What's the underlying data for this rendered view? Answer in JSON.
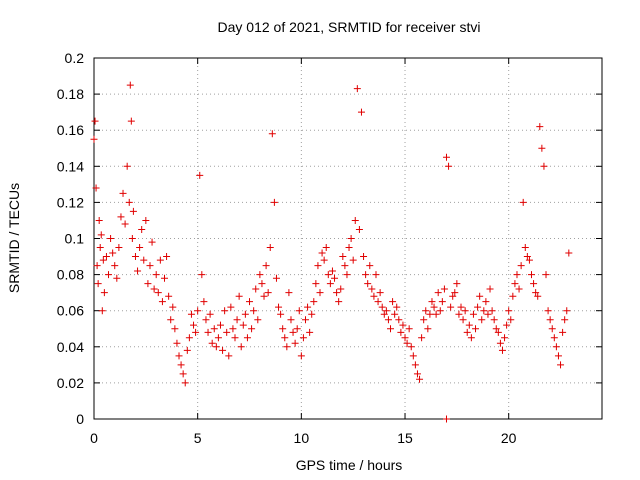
{
  "chart_data": {
    "type": "scatter",
    "title": "Day 012 of 2021, SRMTID for receiver stvi",
    "xlabel": "GPS time / hours",
    "ylabel": "SRMTID / TECUs",
    "xlim": [
      0,
      24.5
    ],
    "ylim": [
      0,
      0.2
    ],
    "x_ticks": [
      0,
      5,
      10,
      15,
      20
    ],
    "x_tick_labels": [
      "0",
      "5",
      "10",
      "15",
      "20"
    ],
    "y_ticks": [
      0,
      0.02,
      0.04,
      0.06,
      0.08,
      0.1,
      0.12,
      0.14,
      0.16,
      0.18,
      0.2
    ],
    "y_tick_labels": [
      "0",
      "0.02",
      "0.04",
      "0.06",
      "0.08",
      "0.1",
      "0.12",
      "0.14",
      "0.16",
      "0.18",
      "0.2"
    ],
    "grid": true,
    "legend": "none",
    "marker": "plus",
    "series_color": "#e00000",
    "series": [
      {
        "x": [
          0.0,
          0.05,
          0.1,
          0.15,
          0.2,
          0.25,
          0.3,
          0.35,
          0.4,
          0.45,
          0.5,
          0.6,
          0.7,
          0.8,
          0.9,
          1.0,
          1.1,
          1.2,
          1.3,
          1.4,
          1.5,
          1.6,
          1.7,
          1.75,
          1.8,
          1.85,
          1.9,
          2.0,
          2.1,
          2.2,
          2.3,
          2.4,
          2.5,
          2.6,
          2.7,
          2.8,
          2.9,
          3.0,
          3.1,
          3.2,
          3.3,
          3.4,
          3.5,
          3.6,
          3.7,
          3.8,
          3.9,
          4.0,
          4.1,
          4.2,
          4.3,
          4.4,
          4.5,
          4.6,
          4.7,
          4.8,
          4.9,
          5.0,
          5.1,
          5.2,
          5.3,
          5.4,
          5.5,
          5.6,
          5.7,
          5.8,
          5.9,
          6.0,
          6.1,
          6.2,
          6.3,
          6.4,
          6.5,
          6.6,
          6.7,
          6.8,
          6.9,
          7.0,
          7.1,
          7.2,
          7.3,
          7.4,
          7.5,
          7.6,
          7.7,
          7.8,
          7.9,
          8.0,
          8.1,
          8.2,
          8.3,
          8.4,
          8.5,
          8.6,
          8.7,
          8.8,
          8.9,
          9.0,
          9.1,
          9.2,
          9.3,
          9.4,
          9.5,
          9.6,
          9.7,
          9.8,
          9.9,
          10.0,
          10.1,
          10.2,
          10.3,
          10.4,
          10.5,
          10.6,
          10.7,
          10.8,
          10.9,
          11.0,
          11.1,
          11.2,
          11.3,
          11.4,
          11.5,
          11.6,
          11.7,
          11.8,
          11.9,
          12.0,
          12.1,
          12.2,
          12.3,
          12.4,
          12.5,
          12.6,
          12.7,
          12.8,
          12.9,
          13.0,
          13.1,
          13.2,
          13.3,
          13.4,
          13.5,
          13.6,
          13.7,
          13.8,
          13.9,
          14.0,
          14.1,
          14.2,
          14.3,
          14.4,
          14.5,
          14.6,
          14.7,
          14.8,
          14.9,
          15.0,
          15.1,
          15.2,
          15.3,
          15.4,
          15.5,
          15.6,
          15.7,
          15.8,
          15.9,
          16.0,
          16.1,
          16.2,
          16.3,
          16.4,
          16.5,
          16.6,
          16.7,
          16.8,
          16.9,
          17.0,
          17.1,
          17.2,
          17.3,
          17.4,
          17.5,
          17.6,
          17.7,
          17.8,
          17.9,
          18.0,
          18.1,
          18.2,
          18.3,
          18.4,
          18.5,
          18.6,
          18.7,
          18.8,
          18.9,
          19.0,
          19.1,
          19.2,
          19.3,
          19.4,
          19.5,
          19.6,
          19.7,
          19.8,
          19.9,
          20.0,
          20.1,
          20.2,
          20.3,
          20.4,
          20.5,
          20.6,
          20.7,
          20.8,
          20.9,
          21.0,
          21.1,
          21.2,
          21.3,
          21.4,
          21.5,
          21.6,
          21.7,
          21.8,
          21.9,
          22.0,
          22.1,
          22.2,
          22.3,
          22.4,
          22.5,
          22.6,
          22.7,
          22.8,
          22.9,
          17.0
        ],
        "y": [
          0.155,
          0.165,
          0.128,
          0.085,
          0.075,
          0.11,
          0.095,
          0.102,
          0.06,
          0.088,
          0.07,
          0.09,
          0.08,
          0.1,
          0.092,
          0.085,
          0.078,
          0.095,
          0.112,
          0.125,
          0.108,
          0.14,
          0.12,
          0.185,
          0.165,
          0.1,
          0.115,
          0.09,
          0.082,
          0.095,
          0.105,
          0.088,
          0.11,
          0.075,
          0.085,
          0.098,
          0.072,
          0.08,
          0.07,
          0.088,
          0.065,
          0.078,
          0.09,
          0.068,
          0.055,
          0.062,
          0.05,
          0.042,
          0.035,
          0.03,
          0.025,
          0.02,
          0.038,
          0.045,
          0.058,
          0.052,
          0.048,
          0.06,
          0.135,
          0.08,
          0.065,
          0.055,
          0.048,
          0.058,
          0.042,
          0.05,
          0.04,
          0.045,
          0.052,
          0.038,
          0.06,
          0.048,
          0.035,
          0.062,
          0.05,
          0.045,
          0.055,
          0.068,
          0.04,
          0.052,
          0.058,
          0.045,
          0.065,
          0.05,
          0.06,
          0.072,
          0.055,
          0.08,
          0.075,
          0.068,
          0.085,
          0.07,
          0.095,
          0.158,
          0.12,
          0.078,
          0.062,
          0.058,
          0.05,
          0.045,
          0.04,
          0.07,
          0.055,
          0.048,
          0.042,
          0.05,
          0.06,
          0.035,
          0.045,
          0.055,
          0.062,
          0.048,
          0.058,
          0.065,
          0.075,
          0.085,
          0.07,
          0.092,
          0.088,
          0.095,
          0.08,
          0.075,
          0.082,
          0.078,
          0.07,
          0.065,
          0.072,
          0.09,
          0.085,
          0.08,
          0.095,
          0.1,
          0.088,
          0.11,
          0.183,
          0.105,
          0.17,
          0.09,
          0.08,
          0.075,
          0.085,
          0.072,
          0.068,
          0.08,
          0.065,
          0.07,
          0.062,
          0.058,
          0.06,
          0.055,
          0.05,
          0.065,
          0.058,
          0.062,
          0.055,
          0.048,
          0.052,
          0.045,
          0.042,
          0.05,
          0.04,
          0.035,
          0.03,
          0.025,
          0.022,
          0.045,
          0.055,
          0.06,
          0.05,
          0.058,
          0.065,
          0.062,
          0.058,
          0.07,
          0.06,
          0.065,
          0.072,
          0.145,
          0.14,
          0.062,
          0.068,
          0.07,
          0.075,
          0.058,
          0.062,
          0.055,
          0.06,
          0.048,
          0.052,
          0.045,
          0.058,
          0.05,
          0.062,
          0.068,
          0.055,
          0.06,
          0.065,
          0.058,
          0.072,
          0.06,
          0.055,
          0.05,
          0.048,
          0.042,
          0.038,
          0.045,
          0.052,
          0.06,
          0.055,
          0.068,
          0.075,
          0.08,
          0.072,
          0.085,
          0.12,
          0.095,
          0.09,
          0.088,
          0.08,
          0.075,
          0.07,
          0.068,
          0.162,
          0.15,
          0.14,
          0.08,
          0.06,
          0.055,
          0.05,
          0.045,
          0.04,
          0.035,
          0.03,
          0.048,
          0.055,
          0.06,
          0.092,
          0.0
        ]
      }
    ]
  }
}
